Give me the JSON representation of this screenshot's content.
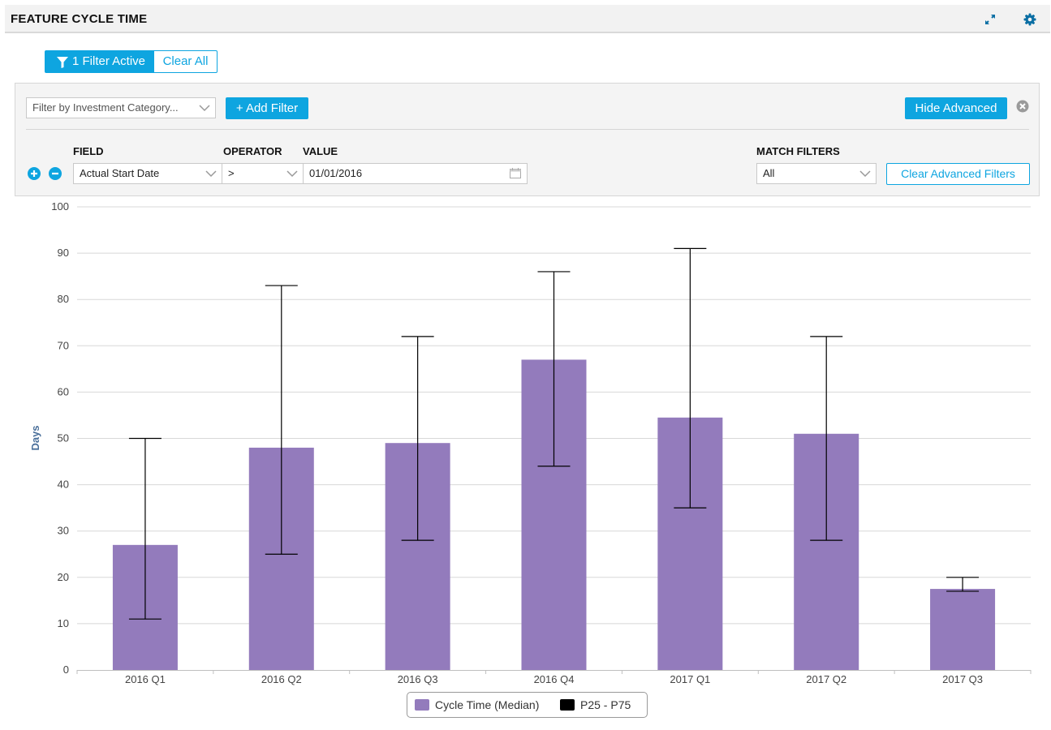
{
  "header": {
    "title": "FEATURE CYCLE TIME"
  },
  "filters": {
    "active_label": "1 Filter Active",
    "clear_all_label": "Clear All",
    "investment_placeholder": "Filter by Investment Category...",
    "add_filter_label": "+ Add Filter",
    "hide_advanced_label": "Hide Advanced",
    "columns": {
      "field": "FIELD",
      "operator": "OPERATOR",
      "value": "VALUE",
      "match": "MATCH FILTERS"
    },
    "row": {
      "field": "Actual Start Date",
      "operator": ">",
      "value": "01/01/2016"
    },
    "match_value": "All",
    "clear_advanced_label": "Clear Advanced Filters"
  },
  "colors": {
    "accent": "#0ea5e0",
    "bar": "#937bbc",
    "error_bar": "#000000",
    "axis_title": "#4a6f9a"
  },
  "icons": [
    "expand-icon",
    "gear-icon",
    "funnel-icon",
    "chevron-down-icon",
    "close-icon",
    "plus-icon",
    "minus-icon",
    "calendar-icon"
  ],
  "chart_data": {
    "type": "bar",
    "title": "",
    "xlabel": "",
    "ylabel": "Days",
    "ylim": [
      0,
      100
    ],
    "yticks": [
      0,
      10,
      20,
      30,
      40,
      50,
      60,
      70,
      80,
      90,
      100
    ],
    "grid": true,
    "legend_position": "bottom-center",
    "categories": [
      "2016 Q1",
      "2016 Q2",
      "2016 Q3",
      "2016 Q4",
      "2017 Q1",
      "2017 Q2",
      "2017 Q3"
    ],
    "series": [
      {
        "name": "Cycle Time (Median)",
        "values": [
          27,
          48,
          49,
          67,
          54.5,
          51,
          17.5
        ]
      },
      {
        "name": "P25 - P75",
        "low": [
          11,
          25,
          28,
          44,
          35,
          28,
          17
        ],
        "high": [
          50,
          83,
          72,
          86,
          91,
          72,
          20
        ]
      }
    ]
  }
}
